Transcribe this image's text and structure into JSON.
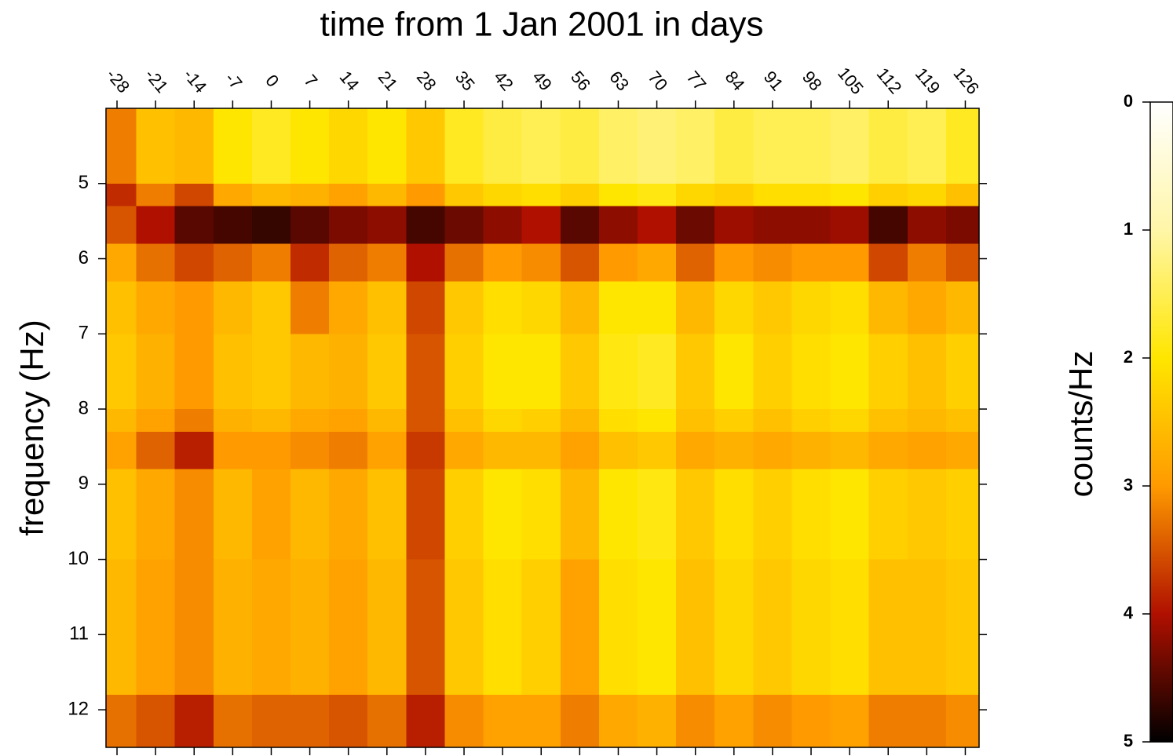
{
  "chart_data": {
    "type": "heatmap",
    "title": "time from 1 Jan 2001 in days",
    "y_label": "frequency (Hz)",
    "colorbar_label": "counts/Hz",
    "xlim": [
      -30,
      128.5
    ],
    "xticks": [
      -28,
      -21,
      -14,
      -7,
      0,
      7,
      14,
      21,
      28,
      35,
      42,
      49,
      56,
      63,
      70,
      77,
      84,
      91,
      98,
      105,
      112,
      119,
      126
    ],
    "ylim": [
      4,
      12.5
    ],
    "y_inverted": true,
    "yticks": [
      5,
      6,
      7,
      8,
      9,
      10,
      11,
      12
    ],
    "zlim": [
      0,
      5
    ],
    "zticks": [
      0,
      1,
      2,
      3,
      4,
      5
    ],
    "colorscale": [
      "#ffffff",
      "#fff6a8",
      "#ffe600",
      "#ff9a00",
      "#b01000",
      "#000000"
    ],
    "x_bins": [
      -30,
      -24.5,
      -17.5,
      -10.5,
      -3.5,
      3.5,
      10.5,
      17.5,
      24.5,
      31.5,
      38.5,
      45.5,
      52.5,
      59.5,
      66.5,
      73.5,
      80.5,
      87.5,
      94.5,
      101.5,
      108.5,
      115.5,
      122.5,
      128.5
    ],
    "y_bins": [
      4,
      5,
      5.3,
      5.8,
      6.3,
      7,
      8,
      8.3,
      8.8,
      10,
      11.8,
      12.5
    ],
    "z": [
      [
        3.2,
        2.5,
        2.6,
        2.0,
        1.8,
        2.0,
        2.2,
        2.0,
        2.4,
        1.8,
        1.6,
        1.5,
        1.6,
        1.4,
        1.3,
        1.4,
        1.6,
        1.5,
        1.5,
        1.4,
        1.6,
        1.5,
        1.8
      ],
      [
        3.8,
        3.2,
        3.6,
        2.8,
        2.6,
        2.7,
        2.9,
        2.6,
        3.0,
        2.4,
        2.2,
        2.1,
        2.3,
        2.0,
        1.9,
        2.2,
        2.3,
        2.1,
        2.1,
        2.0,
        2.3,
        2.2,
        2.5
      ],
      [
        3.5,
        4.0,
        4.5,
        4.6,
        4.7,
        4.5,
        4.3,
        4.2,
        4.6,
        4.4,
        4.2,
        4.0,
        4.5,
        4.2,
        4.0,
        4.4,
        4.1,
        4.2,
        4.2,
        4.1,
        4.6,
        4.2,
        4.3
      ],
      [
        2.8,
        3.3,
        3.6,
        3.4,
        3.2,
        3.8,
        3.4,
        3.2,
        4.0,
        3.3,
        3.0,
        3.1,
        3.5,
        3.0,
        2.8,
        3.4,
        3.0,
        3.1,
        3.0,
        3.0,
        3.6,
        3.2,
        3.5
      ],
      [
        2.5,
        2.8,
        3.0,
        2.6,
        2.4,
        3.2,
        2.8,
        2.5,
        3.6,
        2.4,
        2.1,
        2.2,
        2.6,
        2.0,
        2.0,
        2.6,
        2.2,
        2.4,
        2.2,
        2.1,
        2.6,
        2.8,
        2.6
      ],
      [
        2.4,
        2.7,
        3.0,
        2.5,
        2.4,
        2.6,
        2.7,
        2.4,
        3.5,
        2.3,
        2.0,
        2.0,
        2.4,
        1.9,
        1.8,
        2.4,
        2.0,
        2.3,
        2.1,
        2.0,
        2.3,
        2.5,
        2.3
      ],
      [
        2.6,
        2.9,
        3.2,
        2.7,
        2.6,
        2.8,
        2.9,
        2.6,
        3.5,
        2.5,
        2.2,
        2.3,
        2.6,
        2.1,
        2.0,
        2.5,
        2.3,
        2.5,
        2.3,
        2.2,
        2.5,
        2.6,
        2.5
      ],
      [
        2.9,
        3.4,
        3.9,
        3.0,
        3.0,
        3.1,
        3.2,
        2.9,
        3.7,
        2.8,
        2.6,
        2.6,
        2.9,
        2.5,
        2.4,
        2.8,
        2.7,
        2.8,
        2.7,
        2.6,
        2.8,
        2.9,
        2.8
      ],
      [
        2.5,
        2.8,
        3.1,
        2.6,
        2.9,
        2.6,
        2.8,
        2.5,
        3.6,
        2.3,
        2.0,
        2.1,
        2.6,
        2.0,
        1.9,
        2.4,
        2.1,
        2.3,
        2.1,
        2.0,
        2.3,
        2.4,
        2.3
      ],
      [
        2.6,
        2.9,
        3.1,
        2.7,
        2.8,
        2.7,
        2.9,
        2.6,
        3.5,
        2.4,
        2.1,
        2.3,
        2.9,
        2.1,
        2.0,
        2.5,
        2.2,
        2.4,
        2.2,
        2.1,
        2.5,
        2.5,
        2.4
      ],
      [
        3.3,
        3.5,
        3.9,
        3.3,
        3.4,
        3.4,
        3.5,
        3.3,
        3.9,
        3.1,
        2.9,
        2.9,
        3.2,
        2.8,
        2.7,
        3.1,
        2.9,
        3.1,
        3.0,
        2.9,
        3.2,
        3.2,
        3.1
      ]
    ]
  }
}
